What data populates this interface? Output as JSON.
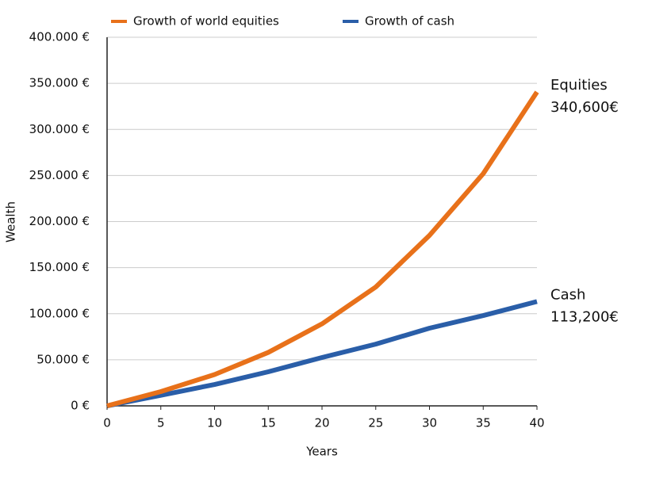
{
  "chart_data": {
    "type": "line",
    "x_label": "Years",
    "y_label": "Wealth",
    "x": [
      0,
      5,
      10,
      15,
      20,
      25,
      30,
      35,
      40
    ],
    "series": [
      {
        "name": "Growth of world equities",
        "color": "#e8711a",
        "values": [
          0,
          15500,
          34000,
          58000,
          89000,
          129000,
          185000,
          252000,
          340600
        ]
      },
      {
        "name": "Growth of cash",
        "color": "#2a5ea8",
        "values": [
          0,
          11500,
          23200,
          37000,
          52500,
          67000,
          84300,
          98000,
          113200
        ]
      }
    ],
    "annotations": [
      {
        "label": "Equities",
        "value_label": "340,600€"
      },
      {
        "label": "Cash",
        "value_label": "113,200€"
      }
    ],
    "xlim": [
      0,
      40
    ],
    "xticks": [
      0,
      5,
      10,
      15,
      20,
      25,
      30,
      35,
      40
    ],
    "ylim": [
      0,
      400000
    ],
    "yticks": [
      {
        "value": 0,
        "label": "0 €"
      },
      {
        "value": 50000,
        "label": "50.000 €"
      },
      {
        "value": 100000,
        "label": "100.000 €"
      },
      {
        "value": 150000,
        "label": "150.000 €"
      },
      {
        "value": 200000,
        "label": "200.000 €"
      },
      {
        "value": 250000,
        "label": "250.000 €"
      },
      {
        "value": 300000,
        "label": "300.000 €"
      },
      {
        "value": 350000,
        "label": "350.000 €"
      },
      {
        "value": 400000,
        "label": "400.000 €"
      }
    ],
    "grid": true,
    "legend": "top"
  }
}
